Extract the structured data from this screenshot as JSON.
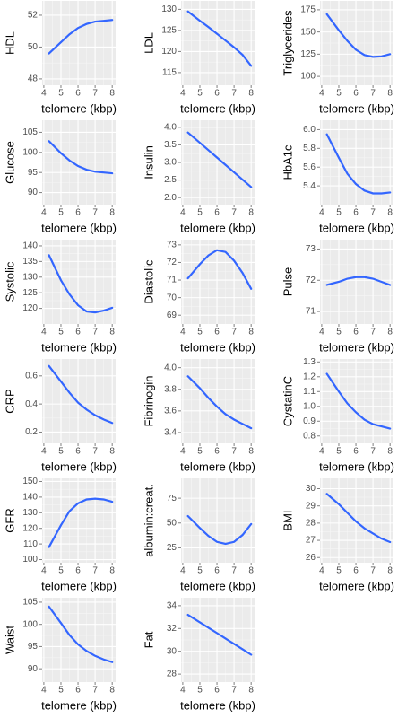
{
  "chart_data": [
    {
      "type": "line",
      "ylabel": "HDL",
      "xlabel": "telomere (kbp)",
      "x": [
        4.3,
        5,
        5.5,
        6,
        6.5,
        7,
        7.5,
        8
      ],
      "values": [
        49.6,
        50.3,
        50.8,
        51.2,
        51.45,
        51.6,
        51.65,
        51.7
      ],
      "color": "#3366ff",
      "xlim": [
        3.9,
        8.2
      ],
      "ylim": [
        47.6,
        52.9
      ],
      "xticks": [
        4,
        5,
        6,
        7,
        8
      ],
      "yticks": [
        48,
        50,
        52
      ],
      "grid": true
    },
    {
      "type": "line",
      "ylabel": "LDL",
      "xlabel": "telomere (kbp)",
      "x": [
        4.3,
        5,
        5.5,
        6,
        6.5,
        7,
        7.5,
        8
      ],
      "values": [
        129.5,
        127.3,
        125.8,
        124.2,
        122.6,
        121,
        119.2,
        116.6
      ],
      "color": "#3366ff",
      "xlim": [
        3.9,
        8.2
      ],
      "ylim": [
        112,
        132
      ],
      "xticks": [
        4,
        5,
        6,
        7,
        8
      ],
      "yticks": [
        115,
        120,
        125,
        130
      ],
      "grid": true
    },
    {
      "type": "line",
      "ylabel": "Triglycerides",
      "xlabel": "telomere (kbp)",
      "x": [
        4.3,
        5,
        5.5,
        6,
        6.5,
        7,
        7.5,
        8
      ],
      "values": [
        170,
        152,
        140,
        130,
        124,
        122,
        122.5,
        125
      ],
      "color": "#3366ff",
      "xlim": [
        3.9,
        8.2
      ],
      "ylim": [
        90,
        185
      ],
      "xticks": [
        4,
        5,
        6,
        7,
        8
      ],
      "yticks": [
        100,
        125,
        150,
        175
      ],
      "grid": true
    },
    {
      "type": "line",
      "ylabel": "Glucose",
      "xlabel": "telomere (kbp)",
      "x": [
        4.3,
        5,
        5.5,
        6,
        6.5,
        7,
        7.5,
        8
      ],
      "values": [
        102.8,
        99.8,
        98,
        96.6,
        95.7,
        95.2,
        95,
        94.8
      ],
      "color": "#3366ff",
      "xlim": [
        3.9,
        8.2
      ],
      "ylim": [
        87,
        108
      ],
      "xticks": [
        4,
        5,
        6,
        7,
        8
      ],
      "yticks": [
        90,
        95,
        100,
        105
      ],
      "grid": true
    },
    {
      "type": "line",
      "ylabel": "Insulin",
      "xlabel": "telomere (kbp)",
      "x": [
        4.3,
        5,
        5.5,
        6,
        6.5,
        7,
        7.5,
        8
      ],
      "values": [
        3.85,
        3.56,
        3.35,
        3.14,
        2.93,
        2.72,
        2.51,
        2.3
      ],
      "color": "#3366ff",
      "xlim": [
        3.9,
        8.2
      ],
      "ylim": [
        1.8,
        4.2
      ],
      "xticks": [
        4,
        5,
        6,
        7,
        8
      ],
      "yticks": [
        {
          "value": 2,
          "label": "2.0"
        },
        2.5,
        {
          "value": 3,
          "label": "3.0"
        },
        3.5,
        {
          "value": 4,
          "label": "4.0"
        }
      ],
      "grid": true
    },
    {
      "type": "line",
      "ylabel": "HbA1c",
      "xlabel": "telomere (kbp)",
      "x": [
        4.3,
        5,
        5.5,
        6,
        6.5,
        7,
        7.5,
        8
      ],
      "values": [
        5.95,
        5.7,
        5.53,
        5.42,
        5.35,
        5.32,
        5.32,
        5.33
      ],
      "color": "#3366ff",
      "xlim": [
        3.9,
        8.2
      ],
      "ylim": [
        5.2,
        6.1
      ],
      "xticks": [
        4,
        5,
        6,
        7,
        8
      ],
      "yticks": [
        5.4,
        5.6,
        5.8,
        {
          "value": 6,
          "label": "6.0"
        }
      ],
      "grid": true
    },
    {
      "type": "line",
      "ylabel": "Systolic",
      "xlabel": "telomere (kbp)",
      "x": [
        4.3,
        5,
        5.5,
        6,
        6.5,
        7,
        7.5,
        8
      ],
      "values": [
        137,
        129,
        124.5,
        121,
        119,
        118.7,
        119.3,
        120.2
      ],
      "color": "#3366ff",
      "xlim": [
        3.9,
        8.2
      ],
      "ylim": [
        115,
        142
      ],
      "xticks": [
        4,
        5,
        6,
        7,
        8
      ],
      "yticks": [
        120,
        125,
        130,
        135,
        140
      ],
      "grid": true
    },
    {
      "type": "line",
      "ylabel": "Diastolic",
      "xlabel": "telomere (kbp)",
      "x": [
        4.3,
        5,
        5.5,
        6,
        6.5,
        7,
        7.5,
        8
      ],
      "values": [
        71.1,
        71.9,
        72.4,
        72.7,
        72.6,
        72.1,
        71.4,
        70.5
      ],
      "color": "#3366ff",
      "xlim": [
        3.9,
        8.2
      ],
      "ylim": [
        68.5,
        73.3
      ],
      "xticks": [
        4,
        5,
        6,
        7,
        8
      ],
      "yticks": [
        69,
        70,
        71,
        72,
        73
      ],
      "grid": true
    },
    {
      "type": "line",
      "ylabel": "Pulse",
      "xlabel": "telomere (kbp)",
      "x": [
        4.3,
        5,
        5.5,
        6,
        6.5,
        7,
        7.5,
        8
      ],
      "values": [
        71.85,
        71.95,
        72.05,
        72.1,
        72.1,
        72.05,
        71.95,
        71.85
      ],
      "color": "#3366ff",
      "xlim": [
        3.9,
        8.2
      ],
      "ylim": [
        70.6,
        73.3
      ],
      "xticks": [
        4,
        5,
        6,
        7,
        8
      ],
      "yticks": [
        71,
        72,
        73
      ],
      "grid": true
    },
    {
      "type": "line",
      "ylabel": "CRP",
      "xlabel": "telomere (kbp)",
      "x": [
        4.3,
        5,
        5.5,
        6,
        6.5,
        7,
        7.5,
        8
      ],
      "values": [
        0.67,
        0.56,
        0.48,
        0.41,
        0.36,
        0.32,
        0.29,
        0.265
      ],
      "color": "#3366ff",
      "xlim": [
        3.9,
        8.2
      ],
      "ylim": [
        0.12,
        0.72
      ],
      "xticks": [
        4,
        5,
        6,
        7,
        8
      ],
      "yticks": [
        0.2,
        0.4,
        0.6
      ],
      "grid": true
    },
    {
      "type": "line",
      "ylabel": "Fibrinogin",
      "xlabel": "telomere (kbp)",
      "x": [
        4.3,
        5,
        5.5,
        6,
        6.5,
        7,
        7.5,
        8
      ],
      "values": [
        3.92,
        3.81,
        3.72,
        3.64,
        3.57,
        3.52,
        3.48,
        3.44
      ],
      "color": "#3366ff",
      "xlim": [
        3.9,
        8.2
      ],
      "ylim": [
        3.3,
        4.08
      ],
      "xticks": [
        4,
        5,
        6,
        7,
        8
      ],
      "yticks": [
        3.4,
        3.6,
        3.8,
        {
          "value": 4,
          "label": "4.0"
        }
      ],
      "grid": true
    },
    {
      "type": "line",
      "ylabel": "CystatinC",
      "xlabel": "telomere (kbp)",
      "x": [
        4.3,
        5,
        5.5,
        6,
        6.5,
        7,
        7.5,
        8
      ],
      "values": [
        1.22,
        1.1,
        1.02,
        0.96,
        0.91,
        0.88,
        0.865,
        0.85
      ],
      "color": "#3366ff",
      "xlim": [
        3.9,
        8.2
      ],
      "ylim": [
        0.75,
        1.32
      ],
      "xticks": [
        4,
        5,
        6,
        7,
        8
      ],
      "yticks": [
        0.8,
        0.9,
        {
          "value": 1,
          "label": "1.0"
        },
        1.1,
        1.2,
        1.3
      ],
      "grid": true
    },
    {
      "type": "line",
      "ylabel": "GFR",
      "xlabel": "telomere (kbp)",
      "x": [
        4.3,
        5,
        5.5,
        6,
        6.5,
        7,
        7.5,
        8
      ],
      "values": [
        108,
        122,
        131,
        136,
        138.5,
        139,
        138.5,
        137
      ],
      "color": "#3366ff",
      "xlim": [
        3.9,
        8.2
      ],
      "ylim": [
        98,
        152
      ],
      "xticks": [
        4,
        5,
        6,
        7,
        8
      ],
      "yticks": [
        100,
        110,
        120,
        130,
        140,
        150
      ],
      "grid": true
    },
    {
      "type": "line",
      "ylabel": "albumin:creat.",
      "xlabel": "telomere (kbp)",
      "x": [
        4.3,
        5,
        5.5,
        6,
        6.5,
        7,
        7.5,
        8
      ],
      "values": [
        57,
        45,
        37,
        31,
        29,
        31,
        38,
        49
      ],
      "color": "#3366ff",
      "xlim": [
        3.9,
        8.2
      ],
      "ylim": [
        10,
        95
      ],
      "xticks": [
        4,
        5,
        6,
        7,
        8
      ],
      "yticks": [
        25,
        50,
        75
      ],
      "grid": true
    },
    {
      "type": "line",
      "ylabel": "BMI",
      "xlabel": "telomere (kbp)",
      "x": [
        4.3,
        5,
        5.5,
        6,
        6.5,
        7,
        7.5,
        8
      ],
      "values": [
        29.7,
        29.1,
        28.6,
        28.1,
        27.7,
        27.4,
        27.1,
        26.9
      ],
      "color": "#3366ff",
      "xlim": [
        3.9,
        8.2
      ],
      "ylim": [
        25.7,
        30.6
      ],
      "xticks": [
        4,
        5,
        6,
        7,
        8
      ],
      "yticks": [
        26,
        27,
        28,
        29,
        30
      ],
      "grid": true
    },
    {
      "type": "line",
      "ylabel": "Waist",
      "xlabel": "telomere (kbp)",
      "x": [
        4.3,
        5,
        5.5,
        6,
        6.5,
        7,
        7.5,
        8
      ],
      "values": [
        104,
        100.3,
        97.6,
        95.5,
        94,
        92.9,
        92.1,
        91.5
      ],
      "color": "#3366ff",
      "xlim": [
        3.9,
        8.2
      ],
      "ylim": [
        87,
        106
      ],
      "xticks": [
        4,
        5,
        6,
        7,
        8
      ],
      "yticks": [
        90,
        95,
        100,
        105
      ],
      "grid": true
    },
    {
      "type": "line",
      "ylabel": "Fat",
      "xlabel": "telomere (kbp)",
      "x": [
        4.3,
        5,
        5.5,
        6,
        6.5,
        7,
        7.5,
        8
      ],
      "values": [
        33.2,
        32.54,
        32.07,
        31.6,
        31.12,
        30.65,
        30.18,
        29.7
      ],
      "color": "#3366ff",
      "xlim": [
        3.9,
        8.2
      ],
      "ylim": [
        27.3,
        34.7
      ],
      "xticks": [
        4,
        5,
        6,
        7,
        8
      ],
      "yticks": [
        28,
        30,
        32,
        34
      ],
      "grid": true
    }
  ]
}
